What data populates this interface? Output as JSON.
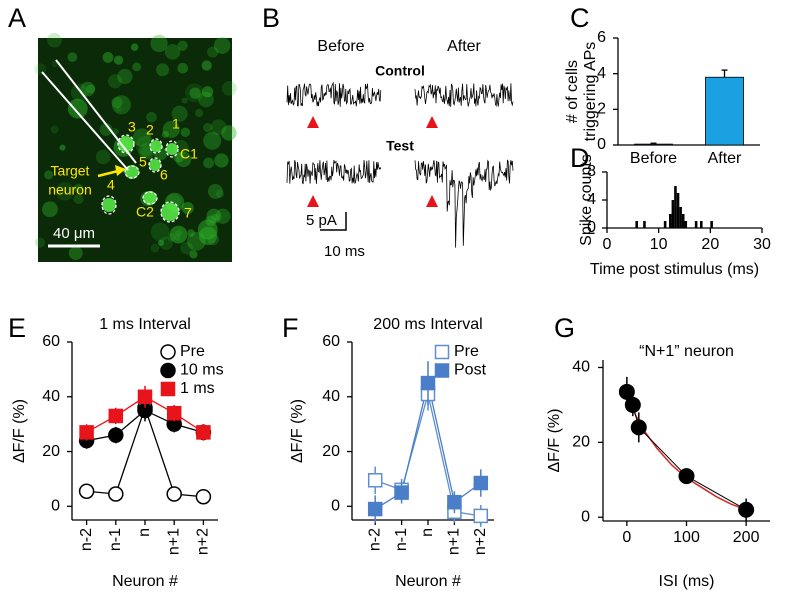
{
  "panel_a": {
    "label": "A",
    "cells": [
      "3",
      "2",
      "1",
      "C1",
      "5",
      "6",
      "4",
      "C2",
      "7"
    ],
    "target": [
      "Target",
      "neuron"
    ],
    "scale_bar": "40 μm"
  },
  "panel_b": {
    "label": "B",
    "before": "Before",
    "after": "After",
    "control": "Control",
    "test": "Test",
    "scale_y": "5 pA",
    "scale_x": "10 ms"
  },
  "chart_data": [
    {
      "type": "bar",
      "label": "C",
      "ylabel": [
        "# of cells",
        "triggering APs"
      ],
      "categories": [
        "Before",
        "After"
      ],
      "values": [
        0.05,
        3.8
      ],
      "errors": [
        0.05,
        0.4
      ],
      "color": "#1ba1e2",
      "ylim": [
        0,
        6
      ],
      "yticks": [
        0,
        2,
        4,
        6
      ]
    },
    {
      "type": "histogram",
      "label": "D",
      "ylabel": "Spike counts",
      "xlabel": "Time post stimulus (ms)",
      "bins": [
        5,
        5.5,
        6,
        6.5,
        7,
        7.5,
        8,
        8.5,
        9,
        9.5,
        10,
        10.5,
        11,
        11.5,
        12,
        12.5,
        13,
        13.5,
        14,
        14.5,
        15,
        15.5,
        16,
        16.5,
        17,
        17.5,
        18,
        18.5,
        19,
        19.5,
        20,
        20.5,
        21
      ],
      "counts": [
        0,
        1,
        0,
        0,
        1,
        0,
        0,
        0,
        0,
        0,
        0,
        0,
        1,
        0,
        2,
        4,
        6,
        5,
        3,
        2,
        1,
        0,
        0,
        0,
        1,
        0,
        1,
        0,
        0,
        0,
        1,
        0
      ],
      "color": "#000000",
      "xlim": [
        0,
        30
      ],
      "xticks": [
        0,
        10,
        20,
        30
      ],
      "ylim": [
        0,
        8
      ],
      "yticks": [
        0,
        4,
        8
      ]
    },
    {
      "type": "line",
      "label": "E",
      "title": "1 ms Interval",
      "ylabel": "ΔF/F (%)",
      "xlabel": "Neuron #",
      "categories": [
        "n-2",
        "n-1",
        "n",
        "n+1",
        "n+2"
      ],
      "ylim": [
        -5,
        60
      ],
      "yticks": [
        0,
        20,
        40,
        60
      ],
      "legend": "upper right",
      "series": [
        {
          "name": "Pre",
          "color": "#000000",
          "fill": "#ffffff",
          "marker": "circle",
          "values": [
            5.5,
            4.5,
            36,
            4.5,
            3.5
          ],
          "errors": [
            1,
            1,
            4,
            1,
            1
          ]
        },
        {
          "name": "10 ms",
          "color": "#000000",
          "fill": "#000000",
          "marker": "circle",
          "values": [
            24,
            26,
            35,
            30,
            27
          ],
          "errors": [
            3,
            3,
            4,
            3,
            3
          ]
        },
        {
          "name": "1 ms",
          "color": "#e8141b",
          "fill": "#e8141b",
          "marker": "square",
          "values": [
            27,
            33,
            40,
            34,
            27
          ],
          "errors": [
            3,
            3,
            4,
            3,
            3
          ]
        }
      ]
    },
    {
      "type": "line",
      "label": "F",
      "title": "200 ms Interval",
      "ylabel": "ΔF/F (%)",
      "xlabel": "Neuron #",
      "categories": [
        "n-2",
        "n-1",
        "n",
        "n+1",
        "n+2"
      ],
      "ylim": [
        -5,
        60
      ],
      "yticks": [
        0,
        20,
        40,
        60
      ],
      "legend": "upper right",
      "series": [
        {
          "name": "Pre",
          "color": "#5b8fd1",
          "fill": "#ffffff",
          "marker": "square",
          "values": [
            9.5,
            6,
            41,
            -2,
            -3.5
          ],
          "errors": [
            5,
            4,
            6,
            4,
            4
          ]
        },
        {
          "name": "Post",
          "color": "#4a7ec9",
          "fill": "#4a7ec9",
          "marker": "square",
          "values": [
            -1,
            5,
            45,
            1.5,
            8.5
          ],
          "errors": [
            5,
            4,
            8,
            4,
            5
          ]
        }
      ]
    },
    {
      "type": "scatter",
      "label": "G",
      "title": "“N+1” neuron",
      "ylabel": "ΔF/F (%)",
      "xlabel": "ISI (ms)",
      "x": [
        0,
        10,
        20,
        100,
        200
      ],
      "y": [
        33.5,
        30,
        24,
        11,
        2
      ],
      "errors": [
        4,
        3,
        4,
        2,
        3
      ],
      "color": "#000000",
      "xlim": [
        -40,
        240
      ],
      "xticks": [
        0,
        100,
        200
      ],
      "ylim": [
        -1,
        42
      ],
      "yticks": [
        0,
        20,
        40
      ],
      "fit": {
        "color": "#d62728",
        "x": [
          0,
          25,
          50,
          75,
          100,
          125,
          150,
          175,
          200
        ],
        "y": [
          32,
          24,
          18.5,
          14,
          10.5,
          8,
          5.5,
          3.5,
          2
        ]
      }
    }
  ]
}
